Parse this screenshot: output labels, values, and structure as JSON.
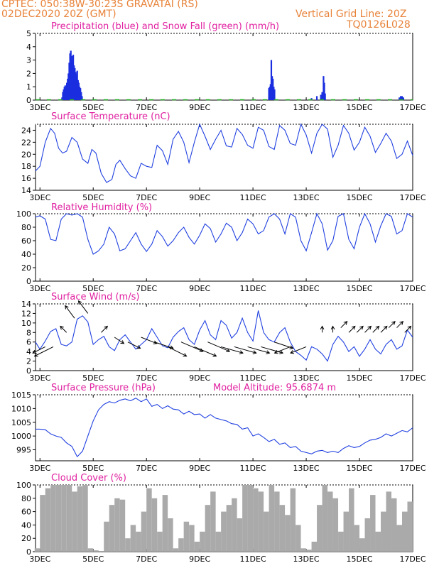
{
  "header": {
    "line1": "CPTEC:   050:38W-30:23S   GRAVATAI (RS)",
    "line2": "02DEC2020 20Z (GMT)",
    "grid_note": "Vertical Grid Line: 20Z",
    "code": "TQ0126L028"
  },
  "colors": {
    "header": "#e8833a",
    "title": "#e020a0",
    "line": "#2040e0",
    "precip": "#1a2ee0",
    "snow": "#22b022",
    "cloud": "#aaaaaa",
    "arrow": "#000000"
  },
  "x_axis": {
    "start_day": 2.8333,
    "end_day": 17.0,
    "tick_days": [
      3,
      5,
      7,
      9,
      11,
      13,
      15,
      17
    ],
    "tick_labels": [
      "3DEC",
      "5DEC",
      "7DEC",
      "9DEC",
      "11DEC",
      "13DEC",
      "15DEC",
      "17DEC"
    ]
  },
  "chart_data": [
    {
      "id": "precip",
      "type": "bar",
      "title": "Precipitation (blue) and Snow Fall (green) (mm/h)",
      "ylim": [
        0,
        5
      ],
      "yticks": [
        0,
        1,
        2,
        3,
        4,
        5
      ],
      "series": [
        {
          "name": "Precipitation",
          "x": [
            3.83,
            3.86,
            3.89,
            3.92,
            3.95,
            3.98,
            4.01,
            4.04,
            4.07,
            4.1,
            4.13,
            4.16,
            4.19,
            4.22,
            4.25,
            4.28,
            4.31,
            4.34,
            4.37,
            4.4,
            4.43,
            4.46,
            4.49,
            4.52,
            4.55,
            4.58,
            11.6,
            11.63,
            11.66,
            11.69,
            11.72,
            11.75,
            11.78,
            11.81,
            13.2,
            13.4,
            13.55,
            13.6,
            13.65,
            13.68,
            13.71,
            16.5,
            16.55,
            16.6,
            16.65
          ],
          "values": [
            0.2,
            0.6,
            0.8,
            1.0,
            1.1,
            0.9,
            1.3,
            1.6,
            2.0,
            2.8,
            3.5,
            3.7,
            3.3,
            2.9,
            3.4,
            2.6,
            2.4,
            2.1,
            1.9,
            2.2,
            1.5,
            1.3,
            1.0,
            0.9,
            0.6,
            0.3,
            0.9,
            1.0,
            1.2,
            3.0,
            1.8,
            1.6,
            1.0,
            0.8,
            0.15,
            0.3,
            0.4,
            0.6,
            1.8,
            1.3,
            0.5,
            0.2,
            0.3,
            0.3,
            0.2
          ]
        },
        {
          "name": "Snow Fall",
          "x": [],
          "values": []
        }
      ]
    },
    {
      "id": "temperature",
      "type": "line",
      "title": "Surface Temperature (nC)",
      "ylim": [
        14,
        25
      ],
      "yticks": [
        14,
        16,
        18,
        20,
        22,
        24
      ],
      "series": [
        {
          "name": "",
          "x": [
            2.83,
            3.0,
            3.2,
            3.4,
            3.55,
            3.7,
            3.85,
            4.0,
            4.2,
            4.4,
            4.6,
            4.8,
            4.95,
            5.1,
            5.3,
            5.5,
            5.7,
            5.85,
            6.0,
            6.2,
            6.4,
            6.6,
            6.8,
            7.0,
            7.2,
            7.4,
            7.6,
            7.8,
            8.0,
            8.2,
            8.4,
            8.6,
            8.8,
            9.0,
            9.2,
            9.4,
            9.6,
            9.8,
            10.0,
            10.2,
            10.4,
            10.6,
            10.8,
            11.0,
            11.2,
            11.4,
            11.6,
            11.8,
            12.0,
            12.2,
            12.4,
            12.6,
            12.8,
            13.0,
            13.2,
            13.4,
            13.6,
            13.8,
            14.0,
            14.2,
            14.4,
            14.6,
            14.8,
            15.0,
            15.2,
            15.4,
            15.6,
            15.8,
            16.0,
            16.2,
            16.4,
            16.6,
            16.8,
            17.0
          ],
          "values": [
            17.2,
            18.0,
            22.0,
            24.3,
            23.5,
            21.0,
            20.2,
            20.5,
            22.8,
            22.0,
            19.2,
            18.5,
            20.8,
            20.2,
            16.8,
            15.3,
            15.8,
            18.3,
            19.0,
            17.6,
            16.4,
            16.0,
            18.5,
            18.0,
            17.8,
            21.5,
            20.6,
            18.3,
            22.5,
            23.8,
            22.0,
            18.6,
            22.0,
            25.0,
            23.0,
            20.8,
            22.5,
            24.0,
            21.4,
            21.2,
            24.3,
            23.3,
            21.5,
            21.0,
            24.5,
            24.0,
            21.3,
            20.8,
            24.8,
            24.0,
            21.8,
            21.5,
            25.0,
            23.2,
            20.2,
            23.5,
            25.0,
            24.2,
            19.5,
            21.5,
            24.8,
            23.5,
            20.7,
            22.0,
            24.5,
            23.0,
            20.3,
            21.8,
            23.5,
            22.2,
            19.3,
            20.0,
            22.2,
            19.8
          ]
        }
      ]
    },
    {
      "id": "humidity",
      "type": "line",
      "title": "Relative Humidity (%)",
      "ylim": [
        0,
        100
      ],
      "yticks": [
        0,
        20,
        40,
        60,
        80,
        100
      ],
      "series": [
        {
          "name": "",
          "x": [
            2.83,
            3.0,
            3.2,
            3.4,
            3.6,
            3.8,
            4.0,
            4.2,
            4.4,
            4.6,
            4.8,
            5.0,
            5.2,
            5.4,
            5.6,
            5.8,
            6.0,
            6.2,
            6.4,
            6.6,
            6.8,
            7.0,
            7.2,
            7.4,
            7.6,
            7.8,
            8.0,
            8.2,
            8.4,
            8.6,
            8.8,
            9.0,
            9.2,
            9.4,
            9.6,
            9.8,
            10.0,
            10.2,
            10.4,
            10.6,
            10.8,
            11.0,
            11.2,
            11.4,
            11.6,
            11.8,
            12.0,
            12.2,
            12.4,
            12.6,
            12.8,
            13.0,
            13.2,
            13.4,
            13.6,
            13.8,
            14.0,
            14.2,
            14.4,
            14.6,
            14.8,
            15.0,
            15.2,
            15.4,
            15.6,
            15.8,
            16.0,
            16.2,
            16.4,
            16.6,
            16.8,
            17.0
          ],
          "values": [
            95,
            97,
            92,
            62,
            60,
            92,
            100,
            98,
            100,
            95,
            62,
            40,
            45,
            55,
            80,
            70,
            45,
            48,
            60,
            72,
            55,
            44,
            55,
            75,
            66,
            52,
            60,
            72,
            80,
            65,
            55,
            68,
            85,
            78,
            58,
            70,
            86,
            80,
            60,
            72,
            92,
            85,
            70,
            75,
            95,
            100,
            92,
            70,
            100,
            95,
            60,
            45,
            72,
            100,
            85,
            46,
            60,
            96,
            100,
            62,
            48,
            80,
            100,
            85,
            58,
            82,
            100,
            96,
            70,
            75,
            100,
            95
          ]
        }
      ]
    },
    {
      "id": "wind",
      "type": "line",
      "title": "Surface Wind (m/s)",
      "ylim": [
        0,
        14
      ],
      "yticks": [
        0,
        2,
        4,
        6,
        8,
        10,
        12,
        14
      ],
      "series": [
        {
          "name": "",
          "x": [
            2.83,
            3.0,
            3.2,
            3.4,
            3.6,
            3.8,
            4.0,
            4.2,
            4.4,
            4.6,
            4.8,
            5.0,
            5.2,
            5.4,
            5.6,
            5.8,
            6.0,
            6.2,
            6.4,
            6.6,
            6.8,
            7.0,
            7.2,
            7.4,
            7.6,
            7.8,
            8.0,
            8.2,
            8.4,
            8.6,
            8.8,
            9.0,
            9.2,
            9.4,
            9.6,
            9.8,
            10.0,
            10.2,
            10.4,
            10.6,
            10.8,
            11.0,
            11.2,
            11.4,
            11.6,
            11.8,
            12.0,
            12.2,
            12.4,
            12.6,
            12.8,
            13.0,
            13.2,
            13.4,
            13.6,
            13.8,
            14.0,
            14.2,
            14.4,
            14.6,
            14.8,
            15.0,
            15.2,
            15.4,
            15.6,
            15.8,
            16.0,
            16.2,
            16.4,
            16.6,
            16.8,
            17.0
          ],
          "values": [
            6.0,
            4.5,
            6.2,
            8.2,
            8.8,
            5.5,
            5.2,
            6.0,
            10.8,
            11.5,
            10.2,
            5.5,
            6.5,
            7.2,
            5.0,
            4.2,
            6.5,
            7.5,
            6.0,
            4.5,
            5.5,
            6.5,
            8.8,
            7.0,
            5.2,
            4.8,
            7.0,
            8.2,
            9.0,
            6.5,
            5.5,
            8.5,
            10.5,
            7.5,
            6.5,
            10.5,
            9.5,
            6.8,
            8.0,
            11.0,
            8.0,
            6.2,
            12.6,
            8.0,
            6.5,
            6.0,
            8.0,
            9.0,
            6.0,
            4.0,
            3.2,
            2.2,
            5.0,
            4.5,
            3.5,
            2.0,
            5.5,
            7.2,
            6.0,
            4.0,
            5.0,
            3.0,
            4.5,
            6.5,
            4.5,
            3.5,
            5.5,
            6.5,
            4.5,
            5.2,
            8.5,
            7.0
          ]
        },
        {
          "name": "arrows",
          "x": [
            3.2,
            3.5,
            4.0,
            4.3,
            4.8,
            5.3,
            5.8,
            6.3,
            6.8,
            7.3,
            7.8,
            8.3,
            8.8,
            9.3,
            9.8,
            10.3,
            10.8,
            11.3,
            11.8,
            12.4,
            13.0,
            13.6,
            14.0,
            14.3,
            14.6,
            14.9,
            15.2,
            15.5,
            15.8,
            16.1,
            16.4,
            16.7
          ],
          "values": [
            5,
            5,
            8,
            11,
            12,
            8,
            7,
            6,
            7,
            6,
            5,
            6,
            5,
            6,
            5,
            5,
            5,
            5,
            6,
            5,
            5,
            8,
            8,
            9,
            8,
            8,
            8,
            8,
            8,
            9,
            9,
            8
          ],
          "u": [
            -8,
            -12,
            -4,
            -6,
            -6,
            4,
            6,
            8,
            10,
            12,
            12,
            14,
            14,
            14,
            14,
            14,
            14,
            14,
            12,
            -10,
            -10,
            0,
            0,
            4,
            4,
            4,
            4,
            4,
            4,
            4,
            4,
            4
          ],
          "v": [
            -4,
            -6,
            4,
            8,
            8,
            4,
            -4,
            -4,
            -4,
            -4,
            -6,
            -6,
            -6,
            -6,
            -4,
            -4,
            -4,
            -4,
            -4,
            -4,
            -4,
            4,
            4,
            4,
            4,
            4,
            4,
            4,
            4,
            4,
            4,
            4
          ]
        }
      ]
    },
    {
      "id": "pressure",
      "type": "line",
      "title": "Surface Pressure (hPa)",
      "annotation": "Model Altitude: 95.6874 m",
      "ylim": [
        991,
        1015
      ],
      "yticks": [
        995,
        1000,
        1005,
        1010,
        1015
      ],
      "series": [
        {
          "name": "",
          "x": [
            2.83,
            3.0,
            3.2,
            3.4,
            3.6,
            3.8,
            4.0,
            4.2,
            4.4,
            4.6,
            4.8,
            5.0,
            5.2,
            5.4,
            5.6,
            5.8,
            6.0,
            6.2,
            6.4,
            6.6,
            6.8,
            7.0,
            7.2,
            7.4,
            7.6,
            7.8,
            8.0,
            8.2,
            8.4,
            8.6,
            8.8,
            9.0,
            9.2,
            9.4,
            9.6,
            9.8,
            10.0,
            10.2,
            10.4,
            10.6,
            10.8,
            11.0,
            11.2,
            11.4,
            11.6,
            11.8,
            12.0,
            12.2,
            12.4,
            12.6,
            12.8,
            13.0,
            13.2,
            13.4,
            13.6,
            13.8,
            14.0,
            14.2,
            14.4,
            14.6,
            14.8,
            15.0,
            15.2,
            15.4,
            15.6,
            15.8,
            16.0,
            16.2,
            16.4,
            16.6,
            16.8,
            17.0
          ],
          "values": [
            1002.5,
            1002.5,
            1002.3,
            1000.8,
            1000.0,
            999.5,
            997.5,
            996.2,
            992.5,
            994.5,
            1000.0,
            1005.5,
            1009.5,
            1011.5,
            1012.5,
            1012.0,
            1013.0,
            1013.5,
            1012.8,
            1013.8,
            1012.5,
            1013.5,
            1010.8,
            1011.5,
            1010.0,
            1011.0,
            1009.8,
            1009.5,
            1008.0,
            1009.0,
            1007.8,
            1008.0,
            1006.5,
            1007.8,
            1006.5,
            1006.0,
            1005.5,
            1004.5,
            1004.2,
            1002.5,
            1003.0,
            1000.0,
            1000.8,
            999.5,
            998.0,
            998.8,
            997.0,
            997.5,
            995.8,
            996.2,
            994.5,
            994.0,
            993.5,
            994.5,
            994.8,
            994.0,
            994.5,
            994.0,
            995.5,
            996.5,
            995.8,
            996.2,
            997.5,
            998.5,
            998.8,
            999.5,
            1000.8,
            1000.0,
            1001.0,
            1002.0,
            1001.5,
            1003.0
          ]
        }
      ]
    },
    {
      "id": "cloud",
      "type": "bar",
      "title": "Cloud Cover (%)",
      "ylim": [
        0,
        100
      ],
      "yticks": [
        0,
        20,
        40,
        60,
        80,
        100
      ],
      "series": [
        {
          "name": "",
          "x": [
            2.9,
            3.1,
            3.3,
            3.5,
            3.7,
            3.9,
            4.1,
            4.3,
            4.5,
            4.7,
            4.9,
            5.1,
            5.3,
            5.5,
            5.7,
            5.9,
            6.1,
            6.3,
            6.5,
            6.7,
            6.9,
            7.1,
            7.3,
            7.5,
            7.7,
            7.9,
            8.1,
            8.3,
            8.5,
            8.7,
            8.9,
            9.1,
            9.3,
            9.5,
            9.7,
            9.9,
            10.1,
            10.3,
            10.5,
            10.7,
            10.9,
            11.1,
            11.3,
            11.5,
            11.7,
            11.9,
            12.1,
            12.3,
            12.5,
            12.7,
            12.9,
            13.1,
            13.3,
            13.5,
            13.7,
            13.9,
            14.1,
            14.3,
            14.5,
            14.7,
            14.9,
            15.1,
            15.3,
            15.5,
            15.7,
            15.9,
            16.1,
            16.3,
            16.5,
            16.7,
            16.9
          ],
          "values": [
            5,
            85,
            95,
            100,
            100,
            100,
            100,
            90,
            98,
            100,
            5,
            2,
            1,
            45,
            70,
            80,
            78,
            20,
            40,
            30,
            60,
            95,
            80,
            30,
            85,
            50,
            5,
            20,
            45,
            40,
            15,
            30,
            70,
            90,
            30,
            60,
            70,
            80,
            50,
            100,
            100,
            95,
            90,
            60,
            100,
            90,
            70,
            55,
            95,
            40,
            5,
            3,
            15,
            70,
            100,
            90,
            80,
            30,
            60,
            95,
            40,
            20,
            50,
            85,
            30,
            60,
            90,
            80,
            40,
            60,
            75
          ]
        }
      ]
    }
  ]
}
